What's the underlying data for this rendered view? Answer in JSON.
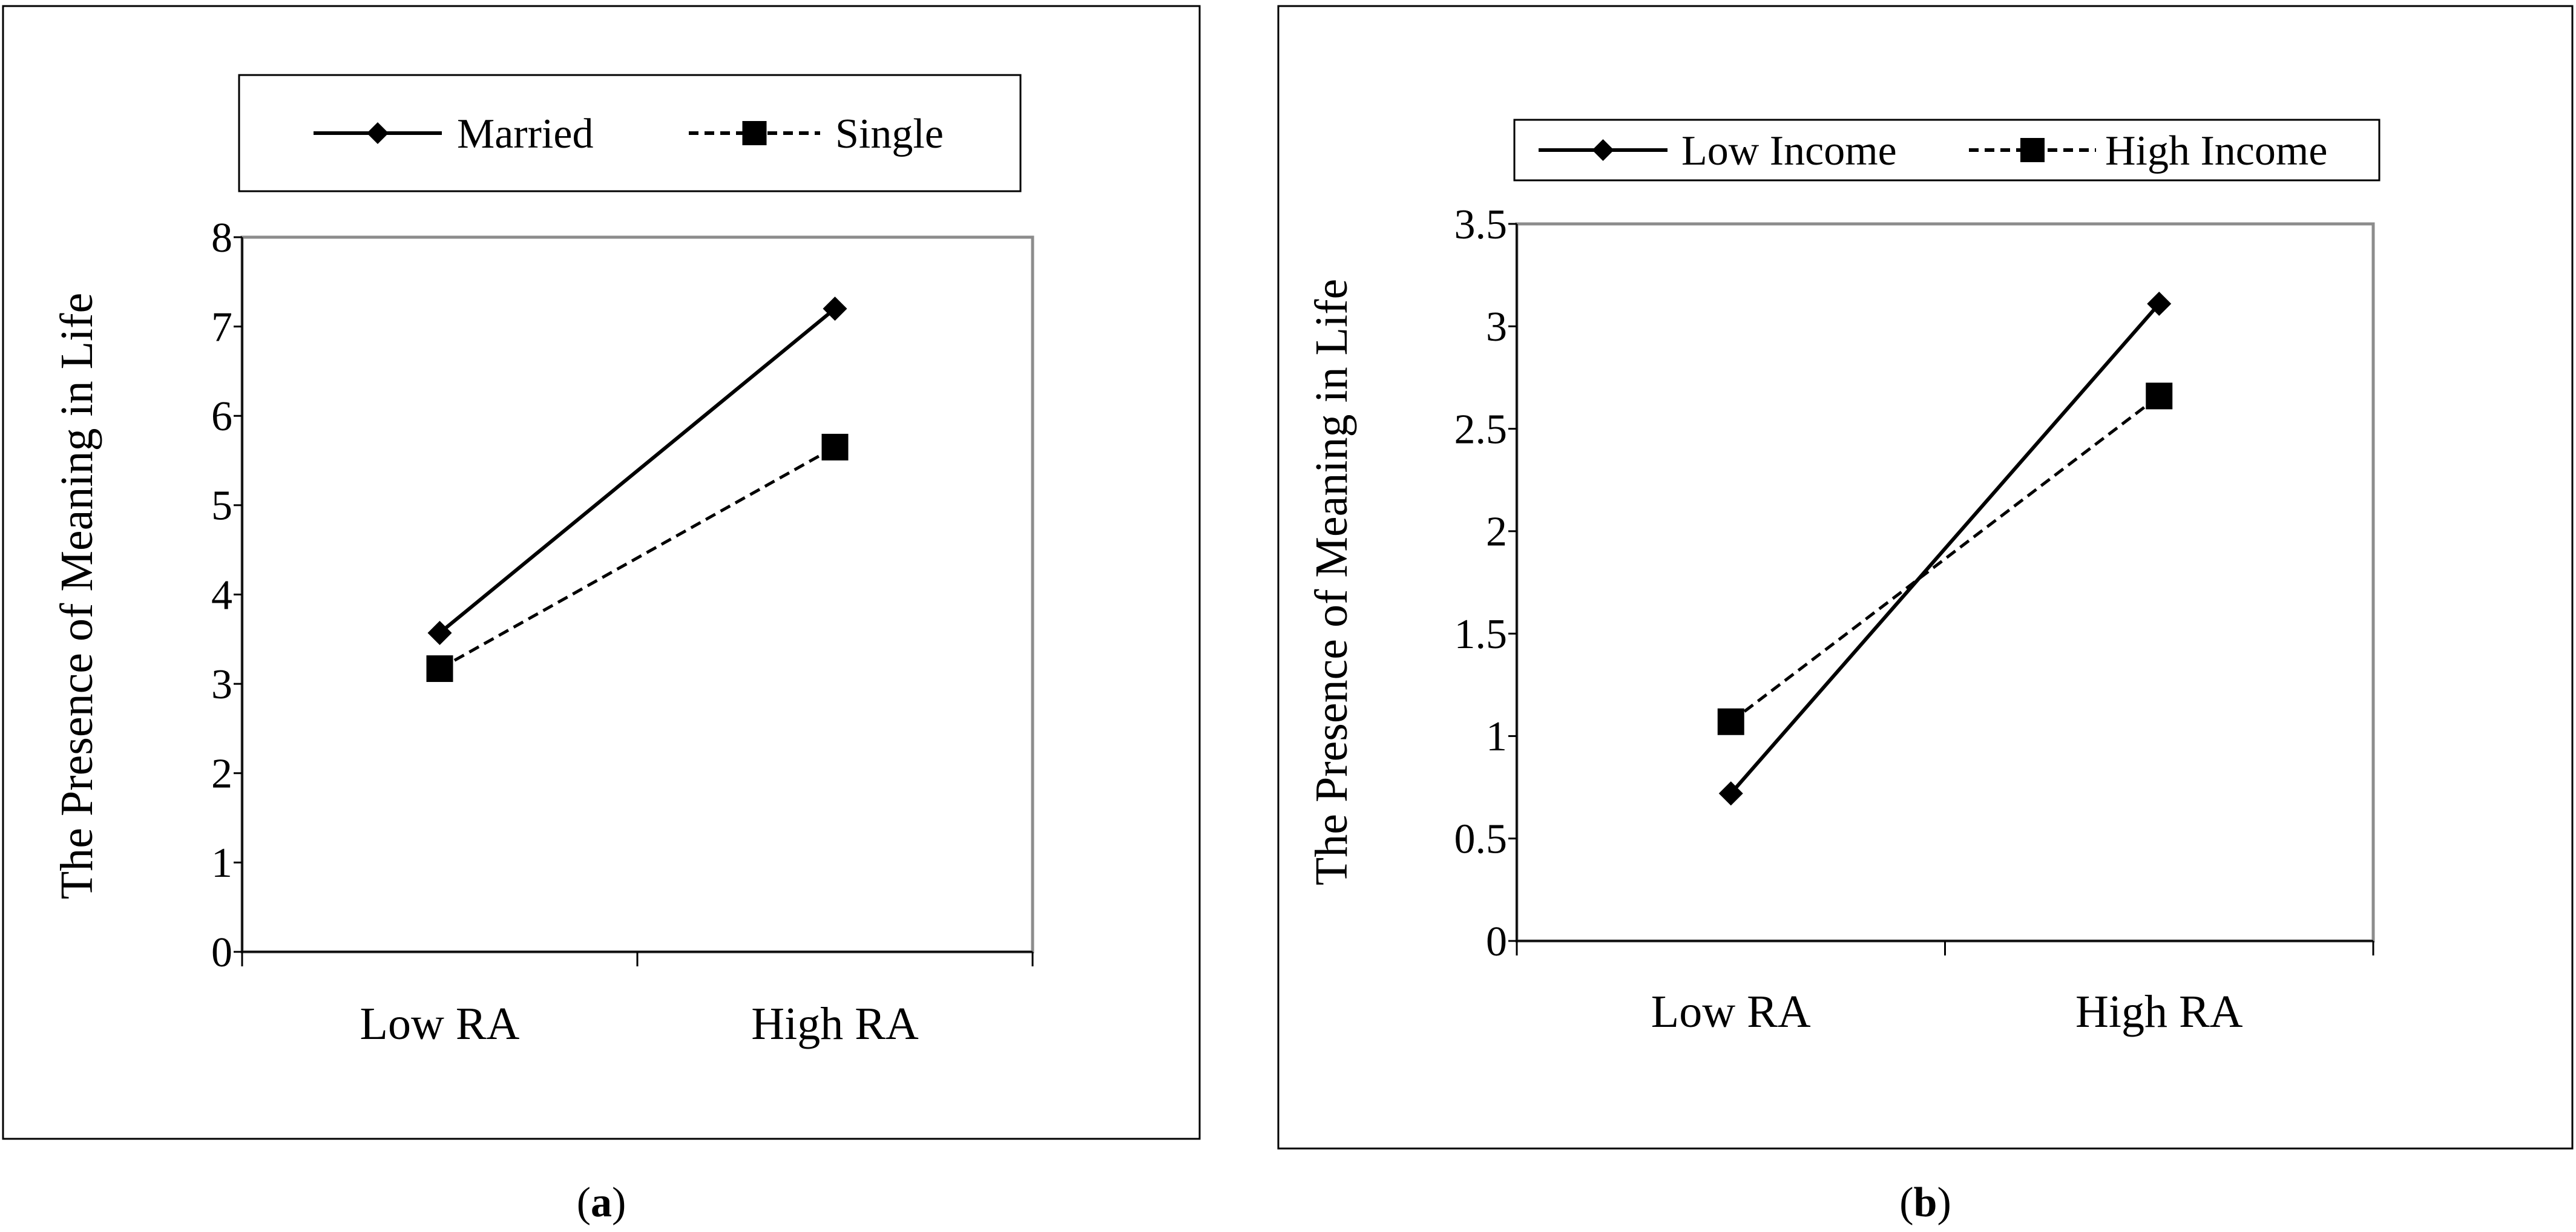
{
  "chart_data": [
    {
      "panel_label_open": "(",
      "panel_label": "a",
      "panel_label_close": ")",
      "type": "line",
      "categories": [
        "Low RA",
        "High RA"
      ],
      "ylabel": "The Presence of Meaning in Life",
      "ylim": [
        0,
        8
      ],
      "yticks": [
        "0",
        "1",
        "2",
        "3",
        "4",
        "5",
        "6",
        "7",
        "8"
      ],
      "legend_position": "top",
      "series": [
        {
          "name": "Married",
          "marker": "diamond",
          "style": "solid",
          "values": [
            3.57,
            7.2
          ]
        },
        {
          "name": "Single",
          "marker": "square",
          "style": "dashed",
          "values": [
            3.17,
            5.65
          ]
        }
      ]
    },
    {
      "panel_label_open": "(",
      "panel_label": "b",
      "panel_label_close": ")",
      "type": "line",
      "categories": [
        "Low RA",
        "High RA"
      ],
      "ylabel": "The Presence of Meaning in Life",
      "ylim": [
        0,
        3.5
      ],
      "yticks": [
        "0",
        "0.5",
        "1",
        "1.5",
        "2",
        "2.5",
        "3",
        "3.5"
      ],
      "legend_position": "top",
      "series": [
        {
          "name": "Low Income",
          "marker": "diamond",
          "style": "solid",
          "values": [
            0.72,
            3.11
          ]
        },
        {
          "name": "High Income",
          "marker": "square",
          "style": "dashed",
          "values": [
            1.07,
            2.66
          ]
        }
      ]
    }
  ]
}
